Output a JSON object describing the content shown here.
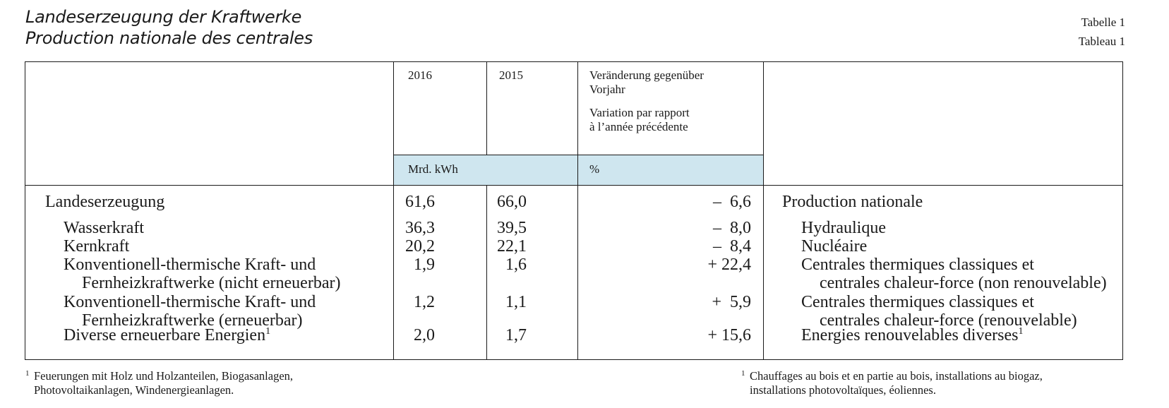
{
  "title_de": "Landeserzeugung der Kraftwerke",
  "title_fr": "Production nationale des centrales",
  "table_label_de": "Tabelle 1",
  "table_label_fr": "Tableau 1",
  "header": {
    "year1": "2016",
    "year2": "2015",
    "change_de_1": "Veränderung gegenüber",
    "change_de_2": "Vorjahr",
    "change_fr_1": "Variation par rapport",
    "change_fr_2": "à l’année précédente",
    "unit_energy": "Mrd. kWh",
    "unit_percent": "%"
  },
  "rows": [
    {
      "de": [
        "Landeserzeugung"
      ],
      "v2016": "61,6",
      "v2015": "66,0",
      "change": "–  6,6",
      "fr": [
        "Production nationale"
      ],
      "fn": ""
    },
    {
      "de": [
        "Wasserkraft"
      ],
      "v2016": "36,3",
      "v2015": "39,5",
      "change": "–  8,0",
      "fr": [
        "Hydraulique"
      ],
      "fn": ""
    },
    {
      "de": [
        "Kernkraft"
      ],
      "v2016": "20,2",
      "v2015": "22,1",
      "change": "–  8,4",
      "fr": [
        "Nucléaire"
      ],
      "fn": ""
    },
    {
      "de": [
        "Konventionell-thermische Kraft- und",
        "Fernheizkraftwerke (nicht erneuerbar)"
      ],
      "v2016": "1,9",
      "v2015": "1,6",
      "change": "+ 22,4",
      "fr": [
        "Centrales thermiques classiques et",
        "centrales chaleur-force (non renouvelable)"
      ],
      "fn": ""
    },
    {
      "de": [
        "Konventionell-thermische Kraft- und",
        "Fernheizkraftwerke (erneuerbar)"
      ],
      "v2016": "1,2",
      "v2015": "1,1",
      "change": "+  5,9",
      "fr": [
        "Centrales thermiques classiques et",
        "centrales chaleur-force (renouvelable)"
      ],
      "fn": ""
    },
    {
      "de": [
        "Diverse erneuerbare Energien"
      ],
      "v2016": "2,0",
      "v2015": "1,7",
      "change": "+ 15,6",
      "fr": [
        "Energies renouvelables diverses"
      ],
      "fn": "1"
    }
  ],
  "footnote_marker": "1",
  "footnote_de_1": "Feuerungen mit Holz und Holzanteilen, Biogasanlagen,",
  "footnote_de_2": "Photovoltaikanlagen, Windenergieanlagen.",
  "footnote_fr_1": "Chauffages au bois et en partie au bois, installations au biogaz,",
  "footnote_fr_2": "installations photovoltaïques, éoliennes.",
  "colors": {
    "header_blue": "#cfe6ef"
  }
}
